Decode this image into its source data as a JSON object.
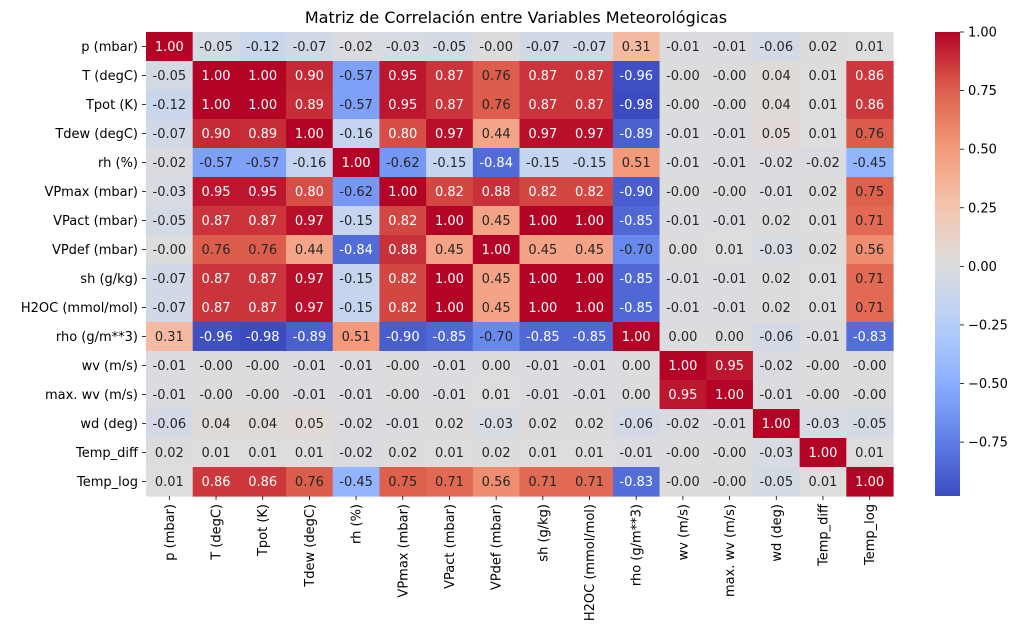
{
  "chart_data": {
    "type": "heatmap",
    "title": "Matriz de Correlación entre Variables Meteorológicas",
    "xlabel": "",
    "ylabel": "",
    "labels": [
      "p (mbar)",
      "T (degC)",
      "Tpot (K)",
      "Tdew (degC)",
      "rh (%)",
      "VPmax (mbar)",
      "VPact (mbar)",
      "VPdef (mbar)",
      "sh (g/kg)",
      "H2OC (mmol/mol)",
      "rho (g/m**3)",
      "wv (m/s)",
      "max. wv (m/s)",
      "wd (deg)",
      "Temp_diff",
      "Temp_log"
    ],
    "value_labels": [
      [
        "1.00",
        "-0.05",
        "-0.12",
        "-0.07",
        "-0.02",
        "-0.03",
        "-0.05",
        "-0.00",
        "-0.07",
        "-0.07",
        "0.31",
        "-0.01",
        "-0.01",
        "-0.06",
        "0.02",
        "0.01"
      ],
      [
        "-0.05",
        "1.00",
        "1.00",
        "0.90",
        "-0.57",
        "0.95",
        "0.87",
        "0.76",
        "0.87",
        "0.87",
        "-0.96",
        "-0.00",
        "-0.00",
        "0.04",
        "0.01",
        "0.86"
      ],
      [
        "-0.12",
        "1.00",
        "1.00",
        "0.89",
        "-0.57",
        "0.95",
        "0.87",
        "0.76",
        "0.87",
        "0.87",
        "-0.98",
        "-0.00",
        "-0.00",
        "0.04",
        "0.01",
        "0.86"
      ],
      [
        "-0.07",
        "0.90",
        "0.89",
        "1.00",
        "-0.16",
        "0.80",
        "0.97",
        "0.44",
        "0.97",
        "0.97",
        "-0.89",
        "-0.01",
        "-0.01",
        "0.05",
        "0.01",
        "0.76"
      ],
      [
        "-0.02",
        "-0.57",
        "-0.57",
        "-0.16",
        "1.00",
        "-0.62",
        "-0.15",
        "-0.84",
        "-0.15",
        "-0.15",
        "0.51",
        "-0.01",
        "-0.01",
        "-0.02",
        "-0.02",
        "-0.45"
      ],
      [
        "-0.03",
        "0.95",
        "0.95",
        "0.80",
        "-0.62",
        "1.00",
        "0.82",
        "0.88",
        "0.82",
        "0.82",
        "-0.90",
        "-0.00",
        "-0.00",
        "-0.01",
        "0.02",
        "0.75"
      ],
      [
        "-0.05",
        "0.87",
        "0.87",
        "0.97",
        "-0.15",
        "0.82",
        "1.00",
        "0.45",
        "1.00",
        "1.00",
        "-0.85",
        "-0.01",
        "-0.01",
        "0.02",
        "0.01",
        "0.71"
      ],
      [
        "-0.00",
        "0.76",
        "0.76",
        "0.44",
        "-0.84",
        "0.88",
        "0.45",
        "1.00",
        "0.45",
        "0.45",
        "-0.70",
        "0.00",
        "0.01",
        "-0.03",
        "0.02",
        "0.56"
      ],
      [
        "-0.07",
        "0.87",
        "0.87",
        "0.97",
        "-0.15",
        "0.82",
        "1.00",
        "0.45",
        "1.00",
        "1.00",
        "-0.85",
        "-0.01",
        "-0.01",
        "0.02",
        "0.01",
        "0.71"
      ],
      [
        "-0.07",
        "0.87",
        "0.87",
        "0.97",
        "-0.15",
        "0.82",
        "1.00",
        "0.45",
        "1.00",
        "1.00",
        "-0.85",
        "-0.01",
        "-0.01",
        "0.02",
        "0.01",
        "0.71"
      ],
      [
        "0.31",
        "-0.96",
        "-0.98",
        "-0.89",
        "0.51",
        "-0.90",
        "-0.85",
        "-0.70",
        "-0.85",
        "-0.85",
        "1.00",
        "0.00",
        "0.00",
        "-0.06",
        "-0.01",
        "-0.83"
      ],
      [
        "-0.01",
        "-0.00",
        "-0.00",
        "-0.01",
        "-0.01",
        "-0.00",
        "-0.01",
        "0.00",
        "-0.01",
        "-0.01",
        "0.00",
        "1.00",
        "0.95",
        "-0.02",
        "-0.00",
        "-0.00"
      ],
      [
        "-0.01",
        "-0.00",
        "-0.00",
        "-0.01",
        "-0.01",
        "-0.00",
        "-0.01",
        "0.01",
        "-0.01",
        "-0.01",
        "0.00",
        "0.95",
        "1.00",
        "-0.01",
        "-0.00",
        "-0.00"
      ],
      [
        "-0.06",
        "0.04",
        "0.04",
        "0.05",
        "-0.02",
        "-0.01",
        "0.02",
        "-0.03",
        "0.02",
        "0.02",
        "-0.06",
        "-0.02",
        "-0.01",
        "1.00",
        "-0.03",
        "-0.05"
      ],
      [
        "0.02",
        "0.01",
        "0.01",
        "0.01",
        "-0.02",
        "0.02",
        "0.01",
        "0.02",
        "0.01",
        "0.01",
        "-0.01",
        "-0.00",
        "-0.00",
        "-0.03",
        "1.00",
        "0.01"
      ],
      [
        "0.01",
        "0.86",
        "0.86",
        "0.76",
        "-0.45",
        "0.75",
        "0.71",
        "0.56",
        "0.71",
        "0.71",
        "-0.83",
        "-0.00",
        "-0.00",
        "-0.05",
        "0.01",
        "1.00"
      ]
    ],
    "colormap": "coolwarm",
    "vmin": -0.98,
    "vmax": 1.0,
    "colorbar_ticks": [
      1.0,
      0.75,
      0.5,
      0.25,
      0.0,
      -0.25,
      -0.5,
      -0.75
    ],
    "colorbar_tick_labels": [
      "1.00",
      "0.75",
      "0.50",
      "0.25",
      "0.00",
      "−0.25",
      "−0.50",
      "−0.75"
    ],
    "grid": false,
    "legend": "colorbar-right"
  }
}
